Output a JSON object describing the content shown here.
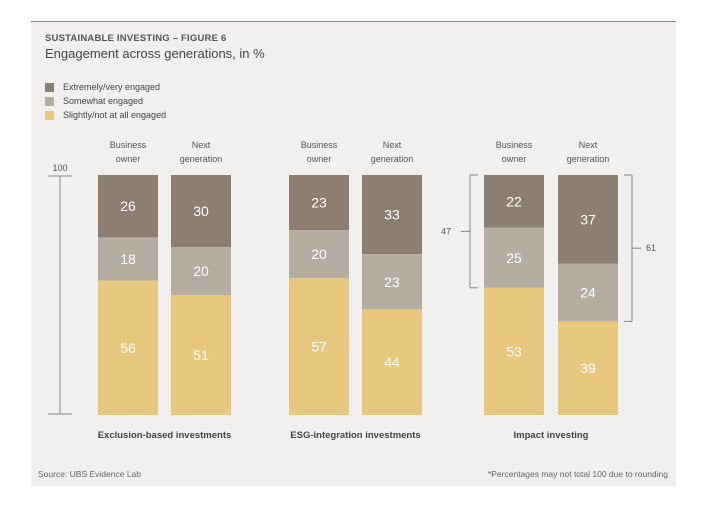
{
  "title": "SUSTAINABLE INVESTING – FIGURE 6",
  "subtitle": "Engagement across generations, in %",
  "legend": [
    {
      "label": "Extremely/very engaged",
      "color": "#8c7e70"
    },
    {
      "label": "Somewhat engaged",
      "color": "#b5aca2"
    },
    {
      "label": "Slightly/not at all engaged",
      "color": "#e8c77e"
    }
  ],
  "footer": {
    "source": "Source: UBS Evidence Lab",
    "note": "*Percentages may not total 100 due to rounding"
  },
  "chart_data": {
    "type": "bar",
    "stacked": true,
    "y_axis_label": "100",
    "ylim": [
      0,
      100
    ],
    "groups": [
      {
        "label": "Exclusion-based investments",
        "bars": [
          {
            "label_lines": [
              "Business",
              "owner"
            ],
            "values": [
              26,
              18,
              56
            ]
          },
          {
            "label_lines": [
              "Next",
              "generation"
            ],
            "values": [
              30,
              20,
              51
            ]
          }
        ]
      },
      {
        "label": "ESG-integration investments",
        "bars": [
          {
            "label_lines": [
              "Business",
              "owner"
            ],
            "values": [
              23,
              20,
              57
            ]
          },
          {
            "label_lines": [
              "Next",
              "generation"
            ],
            "values": [
              33,
              23,
              44
            ]
          }
        ]
      },
      {
        "label": "Impact investing",
        "bars": [
          {
            "label_lines": [
              "Business",
              "owner"
            ],
            "values": [
              22,
              25,
              53
            ]
          },
          {
            "label_lines": [
              "Next",
              "generation"
            ],
            "values": [
              37,
              24,
              39
            ]
          }
        ],
        "annotations": [
          {
            "bar": 0,
            "value": 47,
            "side": "left"
          },
          {
            "bar": 1,
            "value": 61,
            "side": "right"
          }
        ]
      }
    ],
    "series": [
      {
        "name": "Extremely/very engaged",
        "color": "#8c7e70"
      },
      {
        "name": "Somewhat engaged",
        "color": "#b5aca2"
      },
      {
        "name": "Slightly/not at all engaged",
        "color": "#e8c77e"
      }
    ]
  }
}
